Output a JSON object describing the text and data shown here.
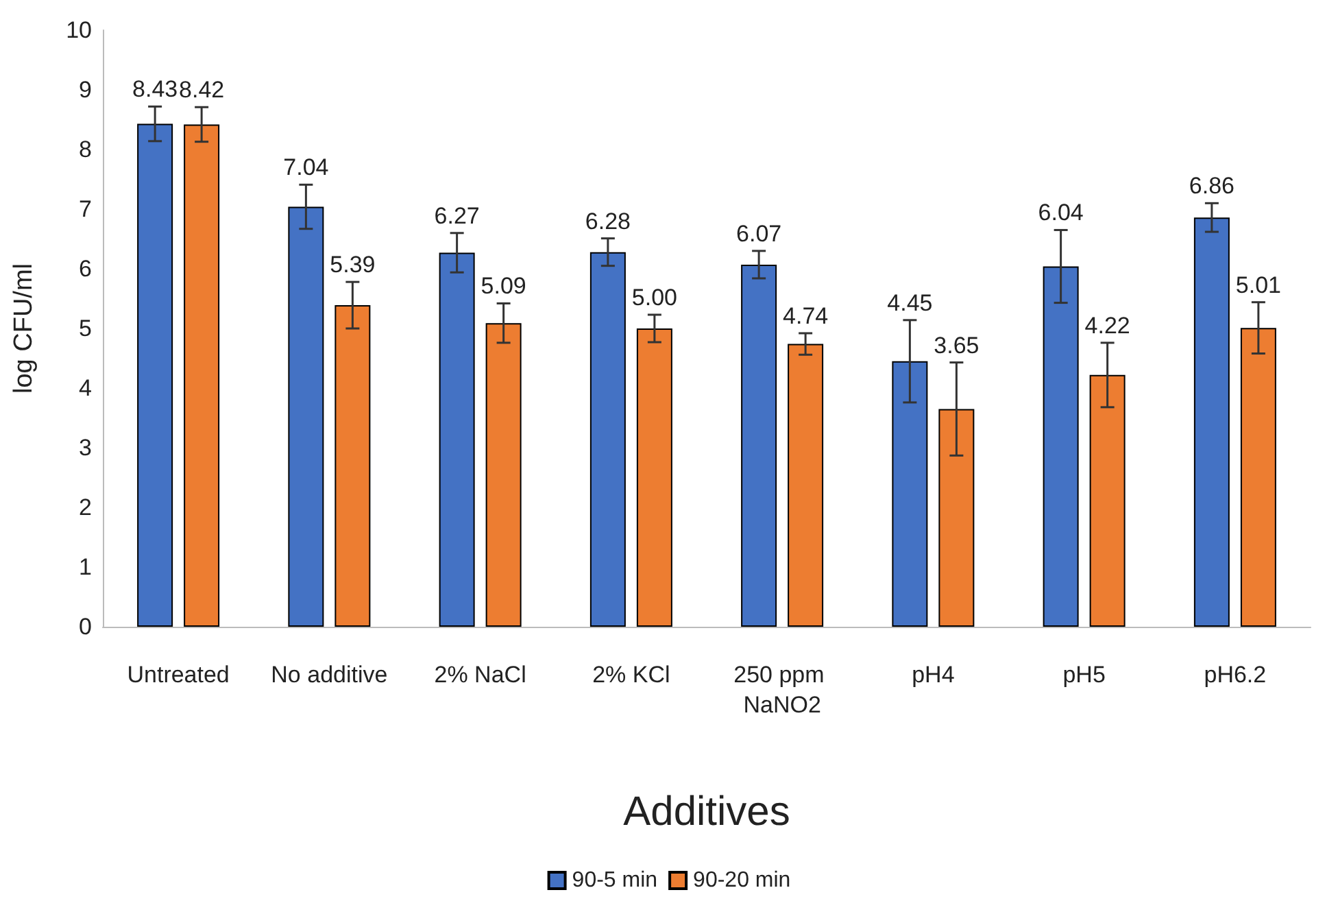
{
  "chart_data": {
    "type": "bar",
    "xlabel": "Additives",
    "ylabel": "log CFU/ml",
    "categories": [
      "Untreated",
      "No additive",
      "2% NaCl",
      "2% KCl",
      "250 ppm NaNO2",
      "pH4",
      "pH5",
      "pH6.2"
    ],
    "series": [
      {
        "name": "90-5 min",
        "color": "#4472c4",
        "values": [
          8.43,
          7.04,
          6.27,
          6.28,
          6.07,
          4.45,
          6.04,
          6.86
        ],
        "errors": [
          0.29,
          0.37,
          0.33,
          0.23,
          0.23,
          0.69,
          0.61,
          0.24
        ],
        "value_labels": [
          "8.43",
          "7.04",
          "6.27",
          "6.28",
          "6.07",
          "4.45",
          "6.04",
          "6.86"
        ]
      },
      {
        "name": "90-20 min",
        "color": "#ed7d31",
        "values": [
          8.42,
          5.39,
          5.09,
          5.0,
          4.74,
          3.65,
          4.22,
          5.01
        ],
        "errors": [
          0.29,
          0.39,
          0.33,
          0.23,
          0.18,
          0.78,
          0.54,
          0.43
        ],
        "value_labels": [
          "8.42",
          "5.39",
          "5.09",
          "5.00",
          "4.74",
          "3.65",
          "4.22",
          "5.01"
        ]
      }
    ],
    "ylim": [
      0,
      10
    ],
    "yticks": [
      0,
      1,
      2,
      3,
      4,
      5,
      6,
      7,
      8,
      9,
      10
    ],
    "grid": false,
    "legend": "bottom"
  }
}
